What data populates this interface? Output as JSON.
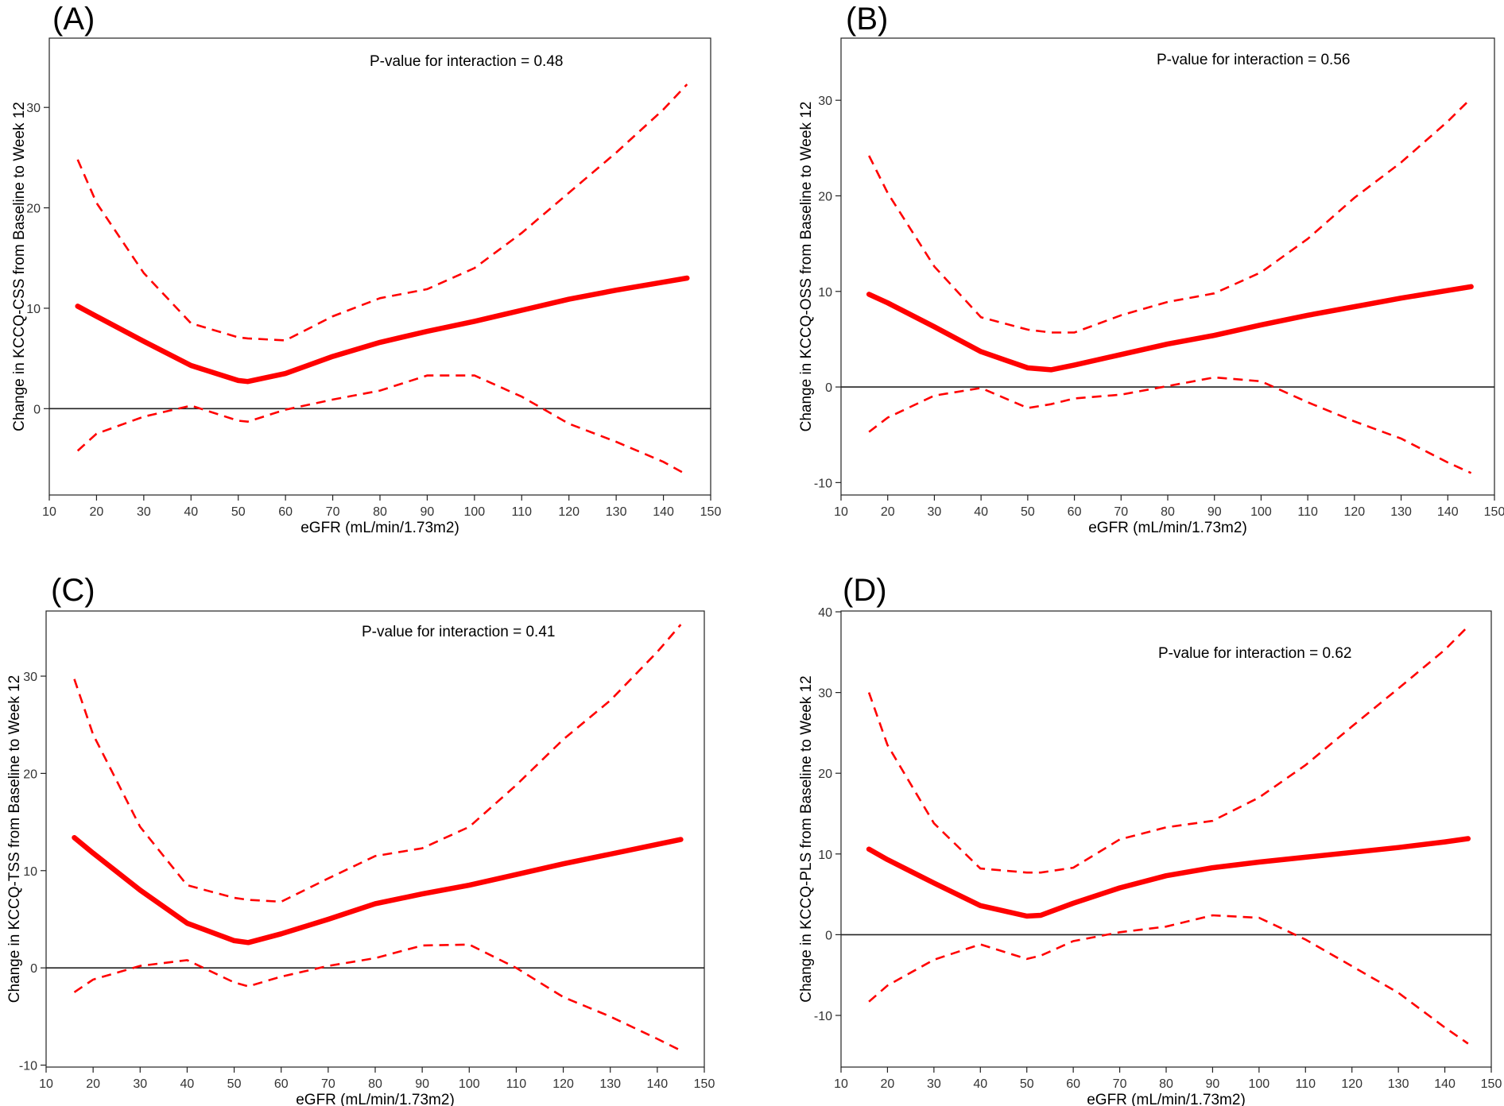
{
  "colors": {
    "curve": "#ff0000",
    "axis": "#222222"
  },
  "x_axis_label": "eGFR (mL/min/1.73m2)",
  "chart_data": [
    {
      "type": "line",
      "panel": "(A)",
      "annotation": "P-value for interaction = 0.48",
      "xlabel": "eGFR (mL/min/1.73m2)",
      "ylabel": "Change in KCCQ-CSS from Baseline to Week 12",
      "xlim": [
        10,
        150
      ],
      "ylim": [
        -8.6,
        36.9
      ],
      "xticks": [
        10,
        20,
        30,
        40,
        50,
        60,
        70,
        80,
        90,
        100,
        110,
        120,
        130,
        140,
        150
      ],
      "yticks": [
        0,
        10,
        20,
        30
      ],
      "reference_line_y": 0,
      "x": [
        16,
        20,
        30,
        40,
        50,
        52,
        60,
        70,
        80,
        90,
        100,
        110,
        120,
        130,
        140,
        145
      ],
      "series": [
        {
          "values": [
            10.2,
            9.2,
            6.7,
            4.3,
            2.8,
            2.7,
            3.5,
            5.2,
            6.6,
            7.7,
            8.7,
            9.8,
            10.9,
            11.8,
            12.6,
            13.0
          ]
        },
        {
          "values": [
            24.8,
            20.5,
            13.5,
            8.5,
            7.1,
            7.0,
            6.8,
            9.2,
            11.0,
            11.9,
            14.0,
            17.5,
            21.5,
            25.5,
            29.8,
            32.3
          ]
        },
        {
          "values": [
            -4.2,
            -2.5,
            -0.8,
            0.3,
            -1.2,
            -1.3,
            -0.1,
            0.9,
            1.8,
            3.3,
            3.3,
            1.2,
            -1.5,
            -3.3,
            -5.3,
            -6.6
          ]
        }
      ]
    },
    {
      "type": "line",
      "panel": "(B)",
      "annotation": "P-value for interaction = 0.56",
      "xlabel": "eGFR (mL/min/1.73m2)",
      "ylabel": "Change in KCCQ-OSS from Baseline to Week 12",
      "xlim": [
        10,
        150
      ],
      "ylim": [
        -11.3,
        36.5
      ],
      "xticks": [
        10,
        20,
        30,
        40,
        50,
        60,
        70,
        80,
        90,
        100,
        110,
        120,
        130,
        140,
        150
      ],
      "yticks": [
        -10,
        0,
        10,
        20,
        30
      ],
      "reference_line_y": 0,
      "x": [
        16,
        20,
        30,
        40,
        50,
        55,
        60,
        70,
        80,
        90,
        100,
        110,
        120,
        130,
        140,
        145
      ],
      "series": [
        {
          "values": [
            9.7,
            8.8,
            6.3,
            3.7,
            2.0,
            1.8,
            2.3,
            3.4,
            4.5,
            5.4,
            6.5,
            7.5,
            8.4,
            9.3,
            10.1,
            10.5
          ]
        },
        {
          "values": [
            24.2,
            20.3,
            12.6,
            7.3,
            6.0,
            5.7,
            5.7,
            7.5,
            8.9,
            9.8,
            12.0,
            15.5,
            19.8,
            23.5,
            27.8,
            30.2
          ]
        },
        {
          "values": [
            -4.7,
            -3.2,
            -0.9,
            -0.1,
            -2.2,
            -1.8,
            -1.2,
            -0.8,
            0.1,
            1.0,
            0.6,
            -1.6,
            -3.6,
            -5.4,
            -7.9,
            -9.0
          ]
        }
      ]
    },
    {
      "type": "line",
      "panel": "(C)",
      "annotation": "P-value for interaction = 0.41",
      "xlabel": "eGFR (mL/min/1.73m2)",
      "ylabel": "Change in KCCQ-TSS from Baseline to Week 12",
      "xlim": [
        10,
        150
      ],
      "ylim": [
        -10.2,
        36.7
      ],
      "xticks": [
        10,
        20,
        30,
        40,
        50,
        60,
        70,
        80,
        90,
        100,
        110,
        120,
        130,
        140,
        150
      ],
      "yticks": [
        -10,
        0,
        10,
        20,
        30
      ],
      "reference_line_y": 0,
      "x": [
        16,
        20,
        30,
        40,
        50,
        53,
        60,
        70,
        80,
        90,
        100,
        110,
        120,
        130,
        140,
        145
      ],
      "series": [
        {
          "values": [
            13.4,
            11.8,
            8.0,
            4.6,
            2.8,
            2.6,
            3.5,
            5.0,
            6.6,
            7.6,
            8.5,
            9.6,
            10.7,
            11.7,
            12.7,
            13.2
          ]
        },
        {
          "values": [
            29.7,
            24.0,
            14.5,
            8.5,
            7.2,
            7.0,
            6.8,
            9.2,
            11.5,
            12.3,
            14.5,
            18.8,
            23.5,
            27.5,
            32.5,
            35.3
          ]
        },
        {
          "values": [
            -2.5,
            -1.2,
            0.2,
            0.8,
            -1.5,
            -1.9,
            -0.9,
            0.2,
            1.0,
            2.3,
            2.4,
            0.0,
            -3.0,
            -5.0,
            -7.3,
            -8.5
          ]
        }
      ]
    },
    {
      "type": "line",
      "panel": "(D)",
      "annotation": "P-value for interaction = 0.62",
      "xlabel": "eGFR (mL/min/1.73m2)",
      "ylabel": "Change in KCCQ-PLS from Baseline to Week 12",
      "xlim": [
        10,
        150
      ],
      "ylim": [
        -16.4,
        40.1
      ],
      "xticks": [
        10,
        20,
        30,
        40,
        50,
        60,
        70,
        80,
        90,
        100,
        110,
        120,
        130,
        140,
        150
      ],
      "yticks": [
        -10,
        0,
        10,
        20,
        30,
        40
      ],
      "reference_line_y": 0,
      "x": [
        16,
        20,
        30,
        40,
        50,
        53,
        60,
        70,
        80,
        90,
        100,
        110,
        120,
        130,
        140,
        145
      ],
      "series": [
        {
          "values": [
            10.6,
            9.3,
            6.4,
            3.6,
            2.3,
            2.4,
            3.9,
            5.8,
            7.3,
            8.3,
            9.0,
            9.6,
            10.2,
            10.8,
            11.5,
            11.9
          ]
        },
        {
          "values": [
            30.0,
            23.5,
            13.8,
            8.2,
            7.7,
            7.7,
            8.3,
            11.8,
            13.3,
            14.1,
            17.0,
            21.0,
            25.8,
            30.5,
            35.3,
            38.2
          ]
        },
        {
          "values": [
            -8.3,
            -6.3,
            -3.1,
            -1.2,
            -3.0,
            -2.6,
            -0.8,
            0.3,
            1.0,
            2.4,
            2.1,
            -0.6,
            -3.9,
            -7.2,
            -11.5,
            -13.5
          ]
        }
      ]
    }
  ]
}
